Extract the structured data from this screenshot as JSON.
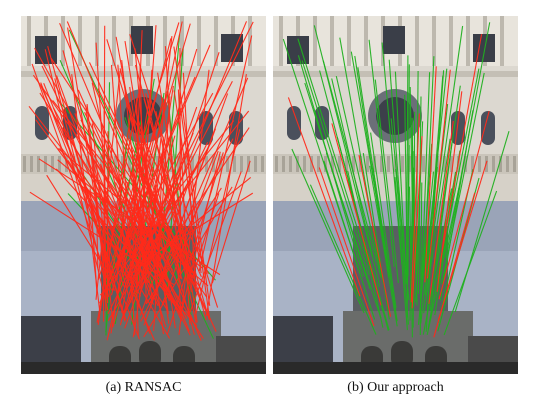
{
  "captions": {
    "left": "(a) RANSAC",
    "right": "(b) Our approach"
  },
  "colors": {
    "outlier": "#ff2a1a",
    "inlier": "#20b020",
    "sky": "#aab6cc",
    "stone": "#d8d4cc"
  },
  "images": {
    "top": "cathedral facade (upper view)",
    "bottom": "cathedral facade (distant view with sky and crowd)"
  }
}
